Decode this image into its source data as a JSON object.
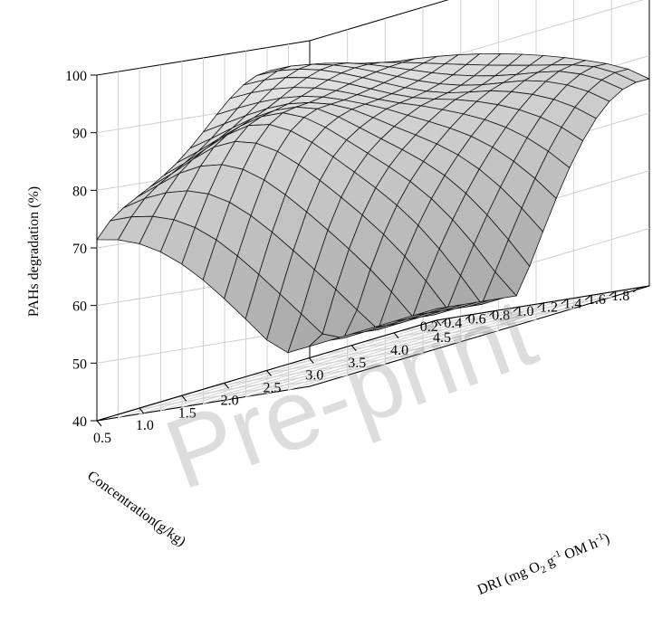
{
  "chart_data": {
    "type": "surface3d",
    "watermark": "Pre-print",
    "zlabel": "PAHs  degradation (%)",
    "xlabel": "Concentration(g/kg)",
    "ylabel": "DRI (mg O2 g-1 OM h-1)",
    "zticks": [
      "40",
      "50",
      "60",
      "70",
      "80",
      "90",
      "100"
    ],
    "xticks": [
      "1.8",
      "1.6",
      "1.4",
      "1.2",
      "1.0",
      "0.8",
      "0.6",
      "0.4",
      "0.2"
    ],
    "yticks": [
      "0.5",
      "1.0",
      "1.5",
      "2.0",
      "2.5",
      "3.0",
      "3.5",
      "4.0",
      "4.5"
    ],
    "zlim": [
      40,
      100
    ],
    "xlim": [
      0.1,
      1.9
    ],
    "ylim": [
      0.5,
      4.5
    ],
    "grid": true,
    "surface_color": "#c8c8c8"
  },
  "ylabel_parts": {
    "pre": "DRI (mg O",
    "sub": "2",
    "mid": " g",
    "sup1": "-1",
    "mid2": " OM h",
    "sup2": "-1",
    "post": ")"
  }
}
